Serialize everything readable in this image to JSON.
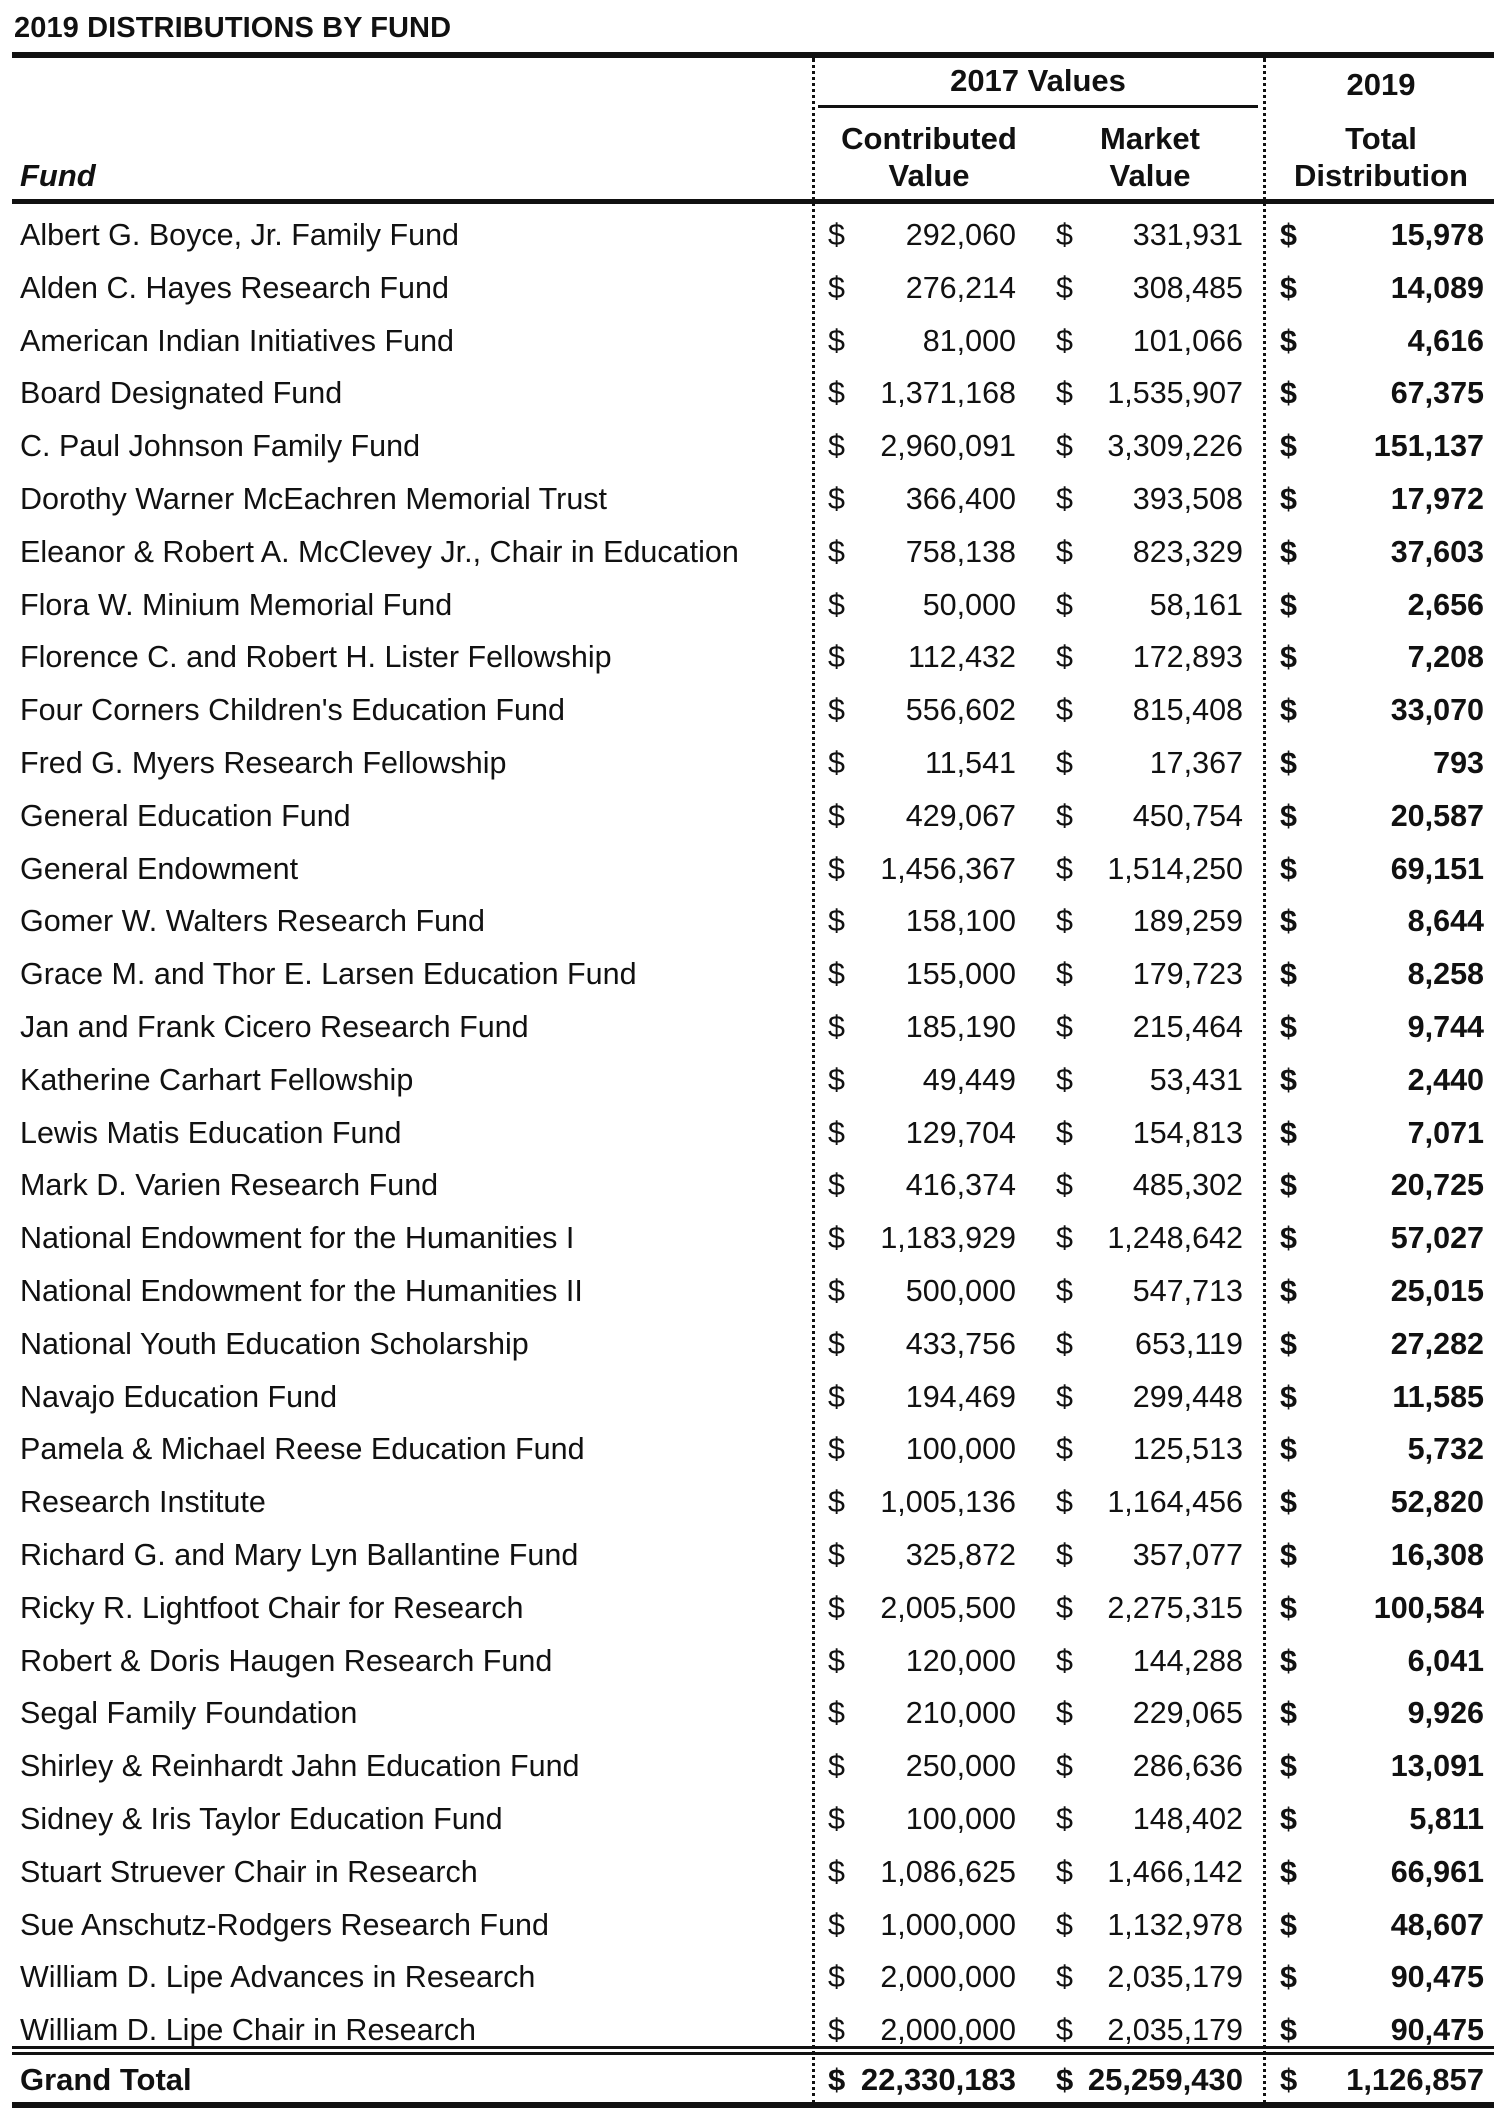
{
  "title": "2019 DISTRIBUTIONS BY FUND",
  "header": {
    "group_2017": "2017 Values",
    "group_2019": "2019",
    "contributed_line1": "Contributed",
    "contributed_line2": "Value",
    "market_line1": "Market",
    "market_line2": "Value",
    "total_line1": "Total",
    "total_line2": "Distribution",
    "fund": "Fund"
  },
  "currency_symbol": "$",
  "rows": [
    {
      "fund": "Albert G. Boyce, Jr. Family Fund",
      "contributed": "292,060",
      "market": "331,931",
      "distribution": "15,978"
    },
    {
      "fund": "Alden C. Hayes Research Fund",
      "contributed": "276,214",
      "market": "308,485",
      "distribution": "14,089"
    },
    {
      "fund": "American Indian Initiatives Fund",
      "contributed": "81,000",
      "market": "101,066",
      "distribution": "4,616"
    },
    {
      "fund": "Board Designated Fund",
      "contributed": "1,371,168",
      "market": "1,535,907",
      "distribution": "67,375"
    },
    {
      "fund": "C. Paul Johnson Family Fund",
      "contributed": "2,960,091",
      "market": "3,309,226",
      "distribution": "151,137"
    },
    {
      "fund": "Dorothy Warner McEachren Memorial Trust",
      "contributed": "366,400",
      "market": "393,508",
      "distribution": "17,972"
    },
    {
      "fund": "Eleanor & Robert A. McClevey Jr., Chair in Education",
      "contributed": "758,138",
      "market": "823,329",
      "distribution": "37,603"
    },
    {
      "fund": "Flora W. Minium Memorial Fund",
      "contributed": "50,000",
      "market": "58,161",
      "distribution": "2,656"
    },
    {
      "fund": "Florence C. and Robert H. Lister Fellowship",
      "contributed": "112,432",
      "market": "172,893",
      "distribution": "7,208"
    },
    {
      "fund": "Four Corners Children's Education Fund",
      "contributed": "556,602",
      "market": "815,408",
      "distribution": "33,070"
    },
    {
      "fund": "Fred G. Myers Research Fellowship",
      "contributed": "11,541",
      "market": "17,367",
      "distribution": "793"
    },
    {
      "fund": "General Education Fund",
      "contributed": "429,067",
      "market": "450,754",
      "distribution": "20,587"
    },
    {
      "fund": "General Endowment",
      "contributed": "1,456,367",
      "market": "1,514,250",
      "distribution": "69,151"
    },
    {
      "fund": "Gomer W. Walters Research Fund",
      "contributed": "158,100",
      "market": "189,259",
      "distribution": "8,644"
    },
    {
      "fund": "Grace M. and Thor E. Larsen Education Fund",
      "contributed": "155,000",
      "market": "179,723",
      "distribution": "8,258"
    },
    {
      "fund": "Jan and Frank Cicero Research Fund",
      "contributed": "185,190",
      "market": "215,464",
      "distribution": "9,744"
    },
    {
      "fund": "Katherine Carhart Fellowship",
      "contributed": "49,449",
      "market": "53,431",
      "distribution": "2,440"
    },
    {
      "fund": "Lewis Matis Education Fund",
      "contributed": "129,704",
      "market": "154,813",
      "distribution": "7,071"
    },
    {
      "fund": "Mark D. Varien Research Fund",
      "contributed": "416,374",
      "market": "485,302",
      "distribution": "20,725"
    },
    {
      "fund": "National Endowment for the Humanities I",
      "contributed": "1,183,929",
      "market": "1,248,642",
      "distribution": "57,027"
    },
    {
      "fund": "National Endowment for the Humanities II",
      "contributed": "500,000",
      "market": "547,713",
      "distribution": "25,015"
    },
    {
      "fund": "National Youth Education Scholarship",
      "contributed": "433,756",
      "market": "653,119",
      "distribution": "27,282"
    },
    {
      "fund": "Navajo Education Fund",
      "contributed": "194,469",
      "market": "299,448",
      "distribution": "11,585"
    },
    {
      "fund": "Pamela & Michael Reese Education Fund",
      "contributed": "100,000",
      "market": "125,513",
      "distribution": "5,732"
    },
    {
      "fund": "Research Institute",
      "contributed": "1,005,136",
      "market": "1,164,456",
      "distribution": "52,820"
    },
    {
      "fund": "Richard G. and Mary Lyn Ballantine Fund",
      "contributed": "325,872",
      "market": "357,077",
      "distribution": "16,308"
    },
    {
      "fund": "Ricky R. Lightfoot Chair for Research",
      "contributed": "2,005,500",
      "market": "2,275,315",
      "distribution": "100,584"
    },
    {
      "fund": "Robert & Doris Haugen Research Fund",
      "contributed": "120,000",
      "market": "144,288",
      "distribution": "6,041"
    },
    {
      "fund": "Segal Family Foundation",
      "contributed": "210,000",
      "market": "229,065",
      "distribution": "9,926"
    },
    {
      "fund": "Shirley & Reinhardt Jahn Education Fund",
      "contributed": "250,000",
      "market": "286,636",
      "distribution": "13,091"
    },
    {
      "fund": "Sidney & Iris Taylor Education Fund",
      "contributed": "100,000",
      "market": "148,402",
      "distribution": "5,811"
    },
    {
      "fund": "Stuart Struever Chair in Research",
      "contributed": "1,086,625",
      "market": "1,466,142",
      "distribution": "66,961"
    },
    {
      "fund": "Sue Anschutz-Rodgers Research Fund",
      "contributed": "1,000,000",
      "market": "1,132,978",
      "distribution": "48,607"
    },
    {
      "fund": "William D. Lipe Advances in Research",
      "contributed": "2,000,000",
      "market": "2,035,179",
      "distribution": "90,475"
    },
    {
      "fund": "William D. Lipe Chair in Research",
      "contributed": "2,000,000",
      "market": "2,035,179",
      "distribution": "90,475"
    }
  ],
  "grand_total": {
    "label": "Grand Total",
    "contributed": "22,330,183",
    "market": "25,259,430",
    "distribution": "1,126,857"
  }
}
